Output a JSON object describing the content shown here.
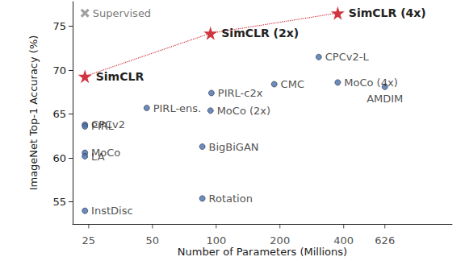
{
  "chart_data": {
    "type": "scatter",
    "xlabel": "Number of Parameters (Millions)",
    "ylabel": "ImageNet Top-1 Accuracy (%)",
    "log": "x",
    "xlim": [
      21,
      1300
    ],
    "xticks": [
      25,
      50,
      100,
      200,
      400,
      626
    ],
    "ylim": [
      52.5,
      77.8
    ],
    "yticks": [
      55,
      60,
      65,
      70,
      75
    ],
    "grid": false,
    "series": [
      {
        "labels": [
          "Supervised"
        ],
        "x": [
          24
        ],
        "values": [
          76.5
        ],
        "color": "#888888",
        "marker": "x"
      },
      {
        "labels": [
          "SimCLR",
          "SimCLR (2x)",
          "SimCLR (4x)"
        ],
        "x": [
          24,
          94,
          375
        ],
        "values": [
          69.3,
          74.2,
          76.5
        ],
        "color": "#d0343f",
        "marker": "star",
        "type": "line",
        "line_style": "dotted"
      },
      {
        "labels": [
          "CPCv2",
          "PIRL",
          "MoCo",
          "LA",
          "InstDisc",
          "PIRL-ens.",
          "BigBiGAN",
          "Rotation",
          "PIRL-c2x",
          "MoCo (2x)",
          "CMC",
          "CPCv2-L",
          "MoCo (4x)",
          "AMDIM"
        ],
        "x": [
          24,
          24,
          24,
          24,
          24,
          47,
          86,
          86,
          95,
          94,
          188,
          305,
          375,
          626
        ],
        "values": [
          63.8,
          63.6,
          60.6,
          60.2,
          54.0,
          65.7,
          61.3,
          55.4,
          67.4,
          65.4,
          68.4,
          71.5,
          68.6,
          68.1
        ],
        "color": "#4a6fa8",
        "marker": "circle"
      }
    ]
  }
}
